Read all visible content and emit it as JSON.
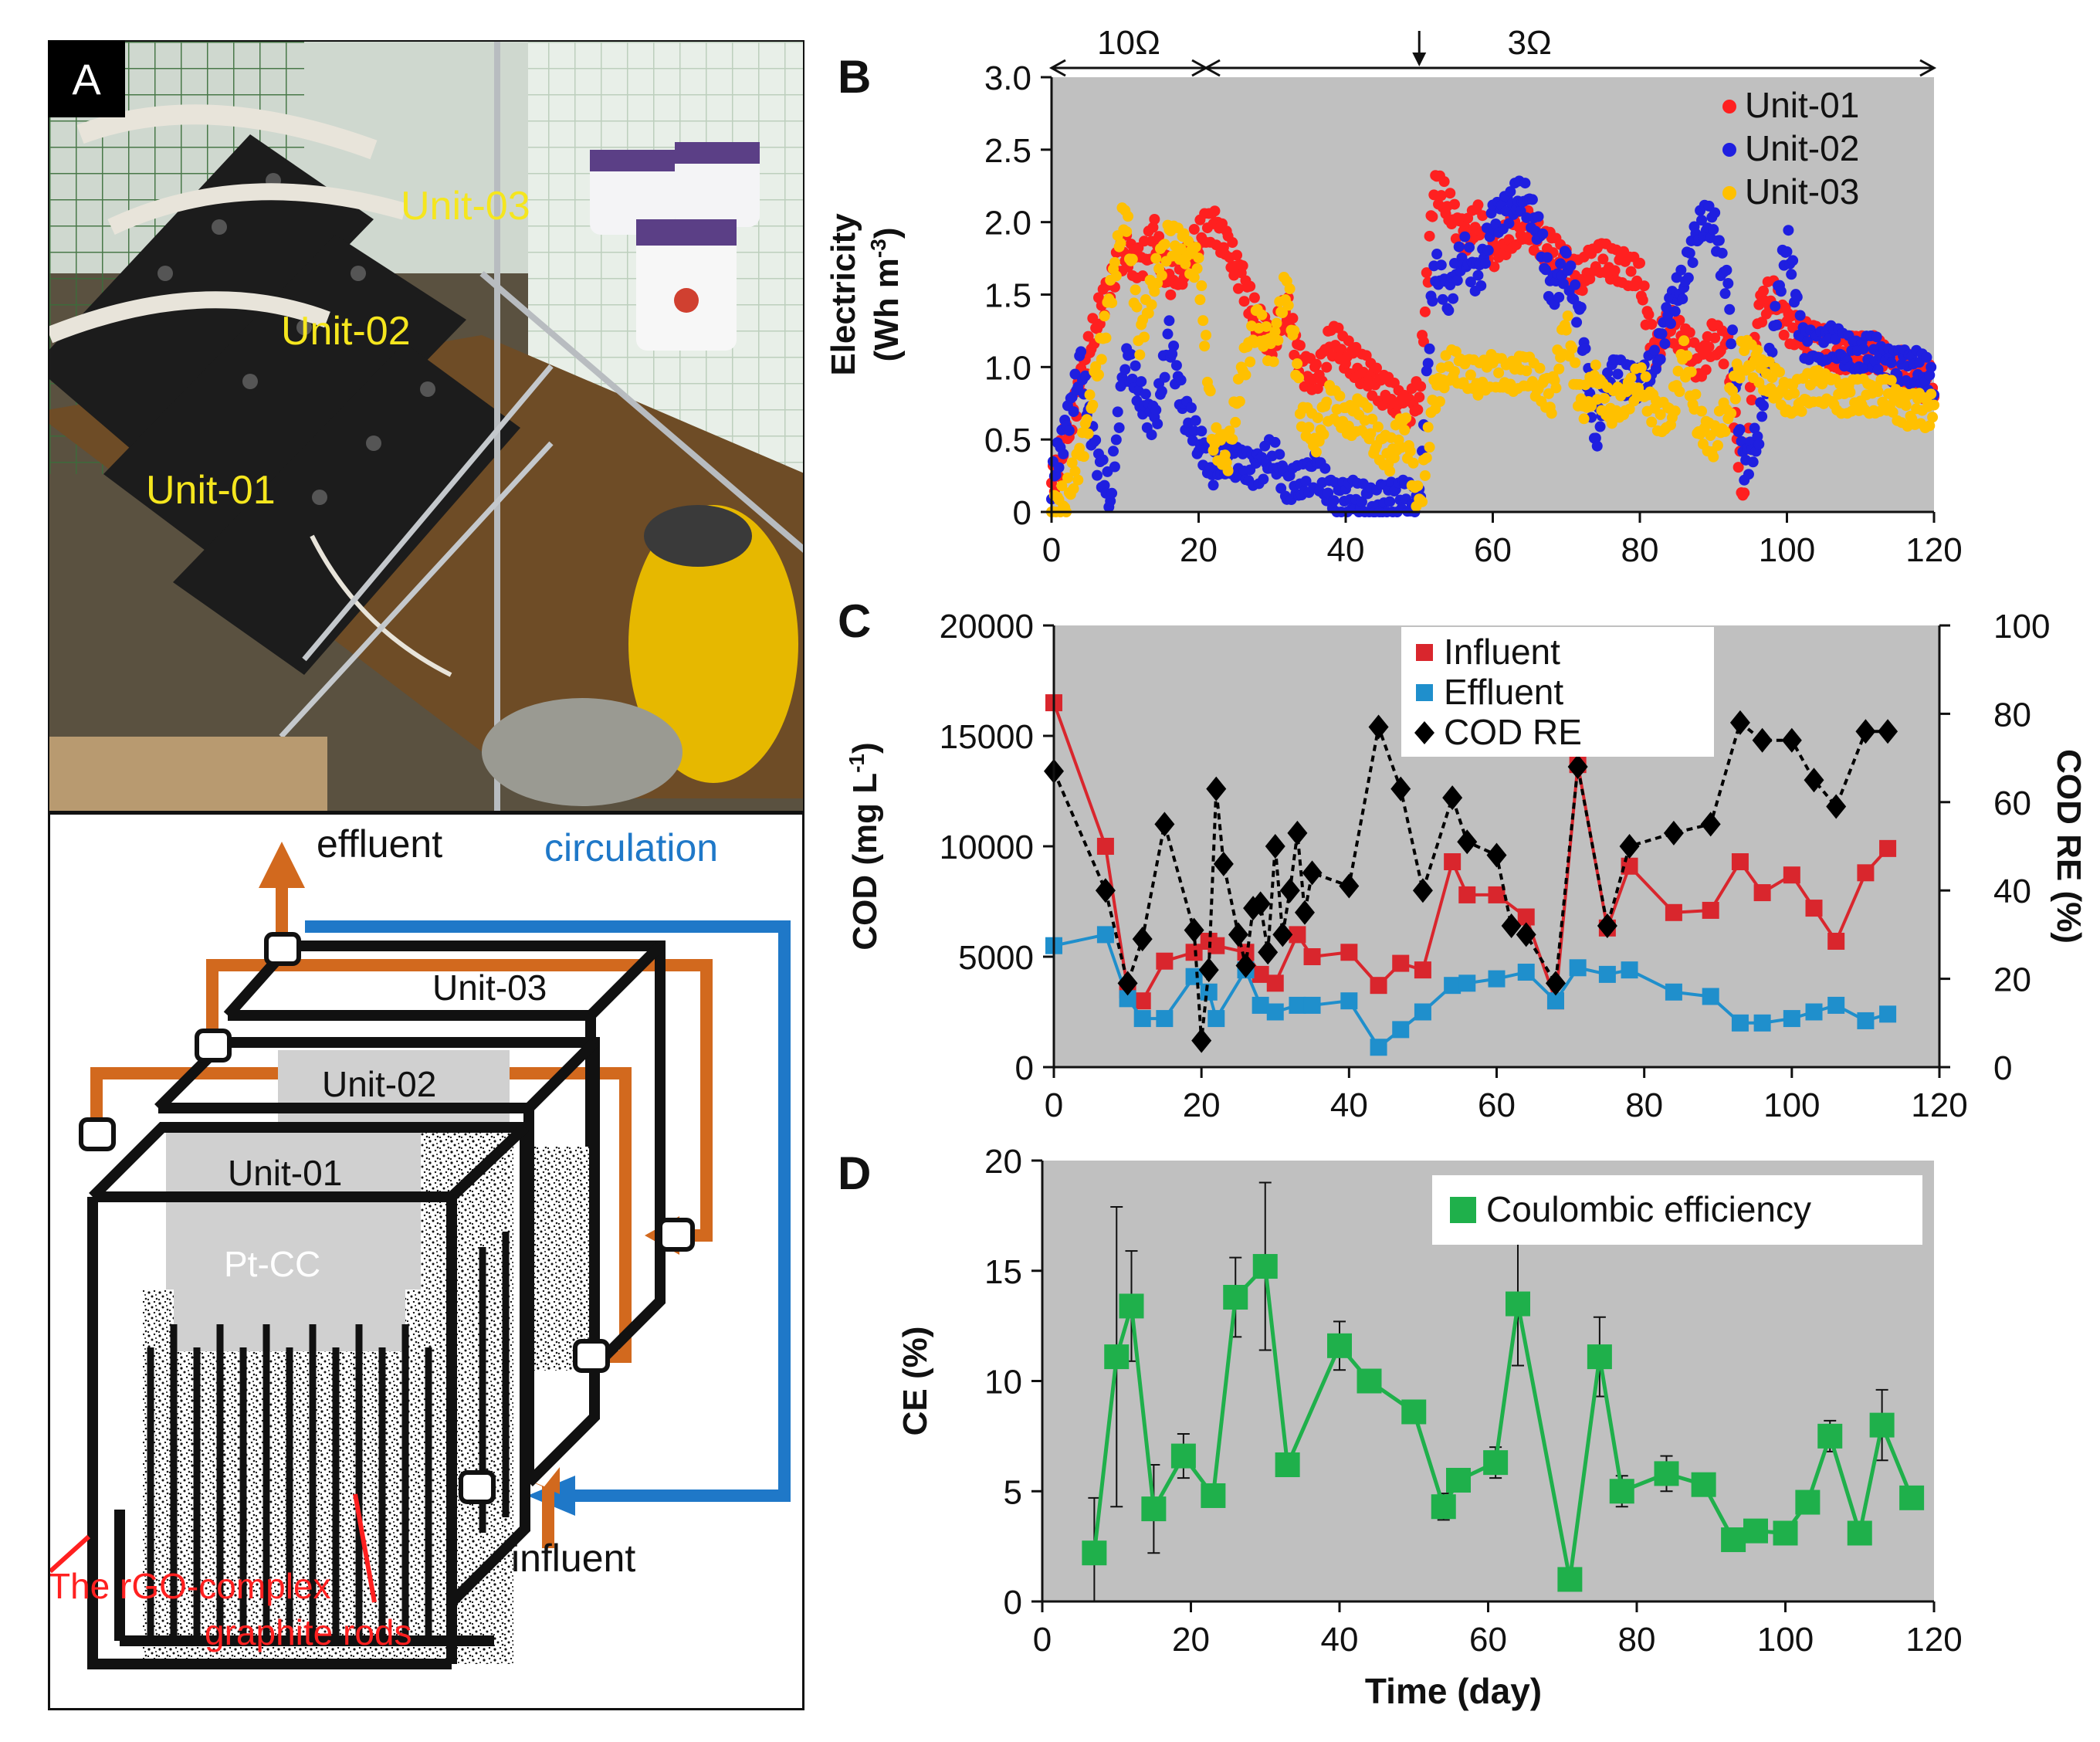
{
  "panelA": {
    "letter": "A",
    "photo_labels": [
      "Unit-03",
      "Unit-02",
      "Unit-01"
    ],
    "diagram_labels": {
      "effluent": "effluent",
      "circulation": "circulation",
      "unit3": "Unit-03",
      "unit2": "Unit-02",
      "unit1": "Unit-01",
      "ptcc": "Pt-CC",
      "influent": "influent",
      "rgo1": "The rGO-complex",
      "rgo2": "graphite rods"
    },
    "colors": {
      "orange": "#d2691e",
      "blue": "#1f78c8",
      "red": "#ff2020",
      "yellow_label": "#f0e020"
    }
  },
  "chart_data": [
    {
      "id": "B",
      "type": "scatter",
      "letter": "B",
      "ylabel_line1": "Electricity",
      "ylabel_line2": "(Wh m",
      "ylabel_sup": "-3",
      "ylabel_close": ")",
      "xlim": [
        0,
        120
      ],
      "ylim": [
        0,
        3.0
      ],
      "xticks": [
        "0",
        "20",
        "40",
        "60",
        "80",
        "100",
        "120"
      ],
      "yticks": [
        "0",
        "0.5",
        "1.0",
        "1.5",
        "2.0",
        "2.5",
        "3.0"
      ],
      "annotation_10": "10Ω",
      "annotation_3": "3Ω",
      "annotation_range_10": [
        0,
        21
      ],
      "annotation_range_3": [
        21,
        120
      ],
      "annotation_arrow_day": 50,
      "legend": [
        "Unit-01",
        "Unit-02",
        "Unit-03"
      ],
      "series": [
        {
          "name": "Unit-01",
          "color": "#ff2020",
          "x": [
            0,
            2,
            4,
            6,
            8,
            10,
            12,
            14,
            16,
            18,
            20,
            22,
            24,
            26,
            28,
            30,
            32,
            34,
            36,
            38,
            40,
            42,
            44,
            46,
            48,
            50,
            52,
            54,
            56,
            58,
            60,
            62,
            64,
            66,
            68,
            70,
            72,
            74,
            76,
            78,
            80,
            82,
            84,
            86,
            88,
            90,
            92,
            94,
            96,
            98,
            100,
            102,
            104,
            106,
            108,
            110,
            112,
            114,
            116,
            118,
            120
          ],
          "y": [
            0.2,
            0.5,
            0.9,
            1.3,
            1.6,
            1.8,
            1.7,
            1.9,
            1.6,
            1.7,
            1.9,
            2.0,
            1.8,
            1.6,
            1.3,
            1.2,
            1.4,
            1.0,
            0.9,
            1.2,
            1.1,
            1.0,
            0.9,
            0.8,
            0.7,
            0.8,
            2.3,
            2.1,
            1.9,
            2.0,
            1.8,
            1.9,
            2.0,
            1.9,
            1.8,
            1.7,
            1.6,
            1.8,
            1.7,
            1.7,
            1.6,
            1.1,
            1.3,
            1.2,
            1.0,
            1.2,
            1.1,
            0.1,
            1.4,
            1.5,
            1.3,
            1.2,
            1.2,
            1.1,
            1.1,
            1.1,
            1.1,
            1.0,
            1.0,
            0.9,
            0.9
          ]
        },
        {
          "name": "Unit-02",
          "color": "#1f1fe0",
          "x": [
            0,
            2,
            4,
            6,
            8,
            10,
            12,
            14,
            16,
            18,
            20,
            22,
            24,
            26,
            28,
            30,
            32,
            34,
            36,
            38,
            40,
            42,
            44,
            46,
            48,
            50,
            52,
            54,
            56,
            58,
            60,
            62,
            64,
            66,
            68,
            70,
            72,
            74,
            76,
            78,
            80,
            82,
            84,
            86,
            88,
            90,
            92,
            94,
            96,
            98,
            100,
            102,
            104,
            106,
            108,
            110,
            112,
            114,
            116,
            118,
            120
          ],
          "y": [
            0.2,
            0.6,
            1.0,
            0.4,
            0.1,
            1.1,
            0.8,
            0.6,
            1.2,
            0.7,
            0.5,
            0.3,
            0.4,
            0.3,
            0.3,
            0.4,
            0.2,
            0.2,
            0.3,
            0.1,
            0.1,
            0.1,
            0.05,
            0.1,
            0.1,
            0.05,
            1.7,
            1.5,
            1.8,
            1.6,
            2.0,
            2.1,
            2.2,
            2.0,
            1.5,
            1.7,
            1.3,
            0.5,
            1.0,
            0.9,
            0.9,
            1.0,
            1.4,
            1.6,
            2.0,
            2.0,
            1.5,
            0.3,
            0.5,
            1.2,
            1.9,
            1.2,
            1.1,
            1.2,
            1.1,
            1.1,
            1.1,
            1.0,
            1.0,
            1.0,
            0.9
          ]
        },
        {
          "name": "Unit-03",
          "color": "#ffc000",
          "x": [
            0,
            2,
            4,
            6,
            8,
            10,
            12,
            14,
            16,
            18,
            20,
            22,
            24,
            26,
            28,
            30,
            32,
            34,
            36,
            38,
            40,
            42,
            44,
            46,
            48,
            50,
            52,
            54,
            56,
            58,
            60,
            62,
            64,
            66,
            68,
            70,
            72,
            74,
            76,
            78,
            80,
            82,
            84,
            86,
            88,
            90,
            92,
            94,
            96,
            98,
            100,
            102,
            104,
            106,
            108,
            110,
            112,
            114,
            116,
            118,
            120
          ],
          "y": [
            0.0,
            0.1,
            0.4,
            0.9,
            1.5,
            2.1,
            1.2,
            1.6,
            1.9,
            1.8,
            1.7,
            0.5,
            0.4,
            1.0,
            1.3,
            1.1,
            1.6,
            0.7,
            0.5,
            0.8,
            0.6,
            0.7,
            0.5,
            0.4,
            0.6,
            0.0,
            0.8,
            1.0,
            1.0,
            0.9,
            1.0,
            0.9,
            1.0,
            0.9,
            0.8,
            1.3,
            0.7,
            0.9,
            0.7,
            0.8,
            0.9,
            0.7,
            0.6,
            1.1,
            0.6,
            0.5,
            0.7,
            1.1,
            1.0,
            0.9,
            0.8,
            0.8,
            0.9,
            0.8,
            0.8,
            0.8,
            0.8,
            0.8,
            0.7,
            0.7,
            0.7
          ]
        }
      ]
    },
    {
      "id": "C",
      "type": "line",
      "letter": "C",
      "ylabel_left": "COD (mg L",
      "ylabel_left_sup": "-1",
      "ylabel_left_close": ")",
      "ylabel_right": "COD RE (%)",
      "xlim": [
        0,
        120
      ],
      "ylim_left": [
        0,
        20000
      ],
      "ylim_right": [
        0,
        100
      ],
      "xticks": [
        "0",
        "20",
        "40",
        "60",
        "80",
        "100",
        "120"
      ],
      "yticks_left": [
        "0",
        "5000",
        "10000",
        "15000",
        "20000"
      ],
      "yticks_right": [
        "0",
        "20",
        "40",
        "60",
        "80",
        "100"
      ],
      "legend": [
        "Influent",
        "Effluent",
        "COD RE"
      ],
      "series": [
        {
          "name": "Influent",
          "color": "#d9262d",
          "axis": "left",
          "x": [
            0,
            7,
            10,
            12,
            15,
            19,
            21,
            22,
            26,
            28,
            30,
            33,
            35,
            40,
            44,
            47,
            50,
            54,
            56,
            60,
            64,
            68,
            71,
            75,
            78,
            84,
            89,
            93,
            96,
            100,
            103,
            106,
            110,
            113
          ],
          "y": [
            16500,
            10000,
            3500,
            3000,
            4800,
            5200,
            5700,
            5500,
            5200,
            4200,
            3800,
            6000,
            5000,
            5200,
            3700,
            4700,
            4400,
            9300,
            7800,
            7800,
            6800,
            3000,
            13700,
            6300,
            9100,
            7000,
            7100,
            9300,
            7900,
            8700,
            7200,
            5700,
            8800,
            9900
          ]
        },
        {
          "name": "Effluent",
          "color": "#1f8fcc",
          "axis": "left",
          "x": [
            0,
            7,
            10,
            12,
            15,
            19,
            21,
            22,
            26,
            28,
            30,
            33,
            35,
            40,
            44,
            47,
            50,
            54,
            56,
            60,
            64,
            68,
            71,
            75,
            78,
            84,
            89,
            93,
            96,
            100,
            103,
            106,
            110,
            113
          ],
          "y": [
            5500,
            6000,
            3100,
            2200,
            2200,
            4100,
            3400,
            2200,
            4400,
            2800,
            2500,
            2800,
            2800,
            3000,
            900,
            1700,
            2500,
            3700,
            3800,
            4000,
            4300,
            3000,
            4500,
            4200,
            4400,
            3400,
            3200,
            2000,
            2000,
            2200,
            2500,
            2800,
            2100,
            2400
          ]
        },
        {
          "name": "COD RE",
          "color": "#000000",
          "axis": "right",
          "x": [
            0,
            7,
            10,
            12,
            15,
            19,
            20,
            21,
            22,
            23,
            25,
            26,
            27,
            28,
            29,
            30,
            31,
            32,
            33,
            34,
            35,
            40,
            44,
            47,
            50,
            54,
            56,
            60,
            62,
            64,
            68,
            71,
            75,
            78,
            84,
            89,
            93,
            96,
            100,
            103,
            106,
            110,
            113
          ],
          "y": [
            67,
            40,
            19,
            29,
            55,
            31,
            6,
            22,
            63,
            46,
            30,
            23,
            36,
            37,
            26,
            50,
            30,
            40,
            53,
            35,
            44,
            41,
            77,
            63,
            40,
            61,
            51,
            48,
            32,
            30,
            19,
            68,
            32,
            50,
            53,
            55,
            78,
            74,
            74,
            65,
            59,
            76,
            76
          ]
        }
      ]
    },
    {
      "id": "D",
      "type": "line",
      "letter": "D",
      "ylabel": "CE (%)",
      "xlabel": "Time (day)",
      "xlim": [
        0,
        120
      ],
      "ylim": [
        0,
        20
      ],
      "xticks": [
        "0",
        "20",
        "40",
        "60",
        "80",
        "100",
        "120"
      ],
      "yticks": [
        "0",
        "5",
        "10",
        "15",
        "20"
      ],
      "legend": [
        "Coulombic efficiency"
      ],
      "series": [
        {
          "name": "Coulombic efficiency",
          "color": "#1fb04b",
          "x": [
            7,
            10,
            12,
            15,
            19,
            23,
            26,
            30,
            33,
            40,
            44,
            50,
            54,
            56,
            61,
            64,
            71,
            75,
            78,
            84,
            89,
            93,
            96,
            100,
            103,
            106,
            110,
            113,
            117
          ],
          "y": [
            2.2,
            11.1,
            13.4,
            4.2,
            6.6,
            4.8,
            13.8,
            15.2,
            6.2,
            11.6,
            10.0,
            8.6,
            4.3,
            5.5,
            6.3,
            13.5,
            1.0,
            11.1,
            5.0,
            5.8,
            5.3,
            2.8,
            3.2,
            3.1,
            4.5,
            7.5,
            3.1,
            8.0,
            4.7
          ],
          "err": [
            2.5,
            6.8,
            2.5,
            2.0,
            1.0,
            0,
            1.8,
            3.8,
            0,
            1.1,
            0,
            0,
            0.6,
            0,
            0.7,
            2.8,
            0,
            1.8,
            0.7,
            0.8,
            0,
            0,
            0,
            0,
            0,
            0.7,
            0,
            1.6,
            0
          ]
        }
      ]
    }
  ]
}
